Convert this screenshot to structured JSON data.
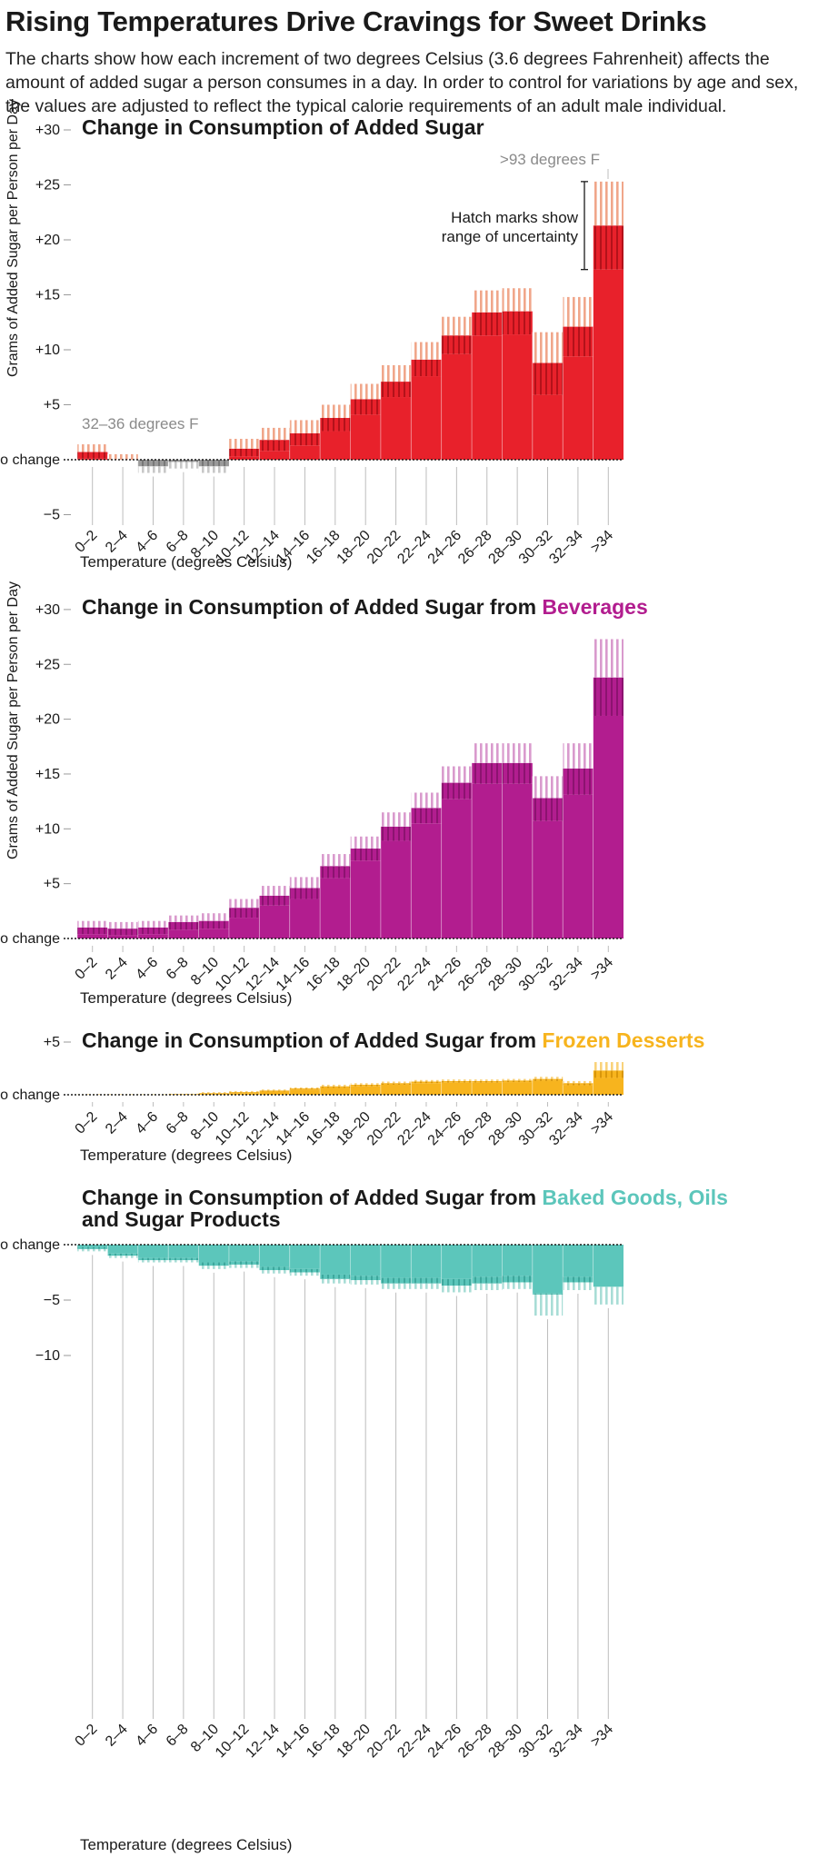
{
  "page": {
    "title": "Rising Temperatures Drive Cravings for Sweet Drinks",
    "subtitle": "The charts show how each increment of two degrees Celsius (3.6 degrees Fahrenheit) affects the amount of added sugar a person consumes in a day. In order to control for variations by age and sex, the values are adjusted to reflect the typical calorie requirements of an adult male individual."
  },
  "chart_data": [
    {
      "type": "bar",
      "title": "Change in Consumption of Added Sugar",
      "title_highlight": "",
      "ylabel": "Grams of Added Sugar per Person per Day",
      "xlabel": "Temperature (degrees Celsius)",
      "ylim": [
        -5,
        30
      ],
      "yticks": [
        "+30",
        "+25",
        "+20",
        "+15",
        "+10",
        "+5",
        "No change",
        "−5"
      ],
      "categories": [
        "0–2",
        "2–4",
        "4–6",
        "6–8",
        "8–10",
        "10–12",
        "12–14",
        "14–16",
        "16–18",
        "18–20",
        "20–22",
        "22–24",
        "24–26",
        "26–28",
        "28–30",
        "30–32",
        "32–34",
        ">34"
      ],
      "values": [
        0.7,
        0.0,
        -0.6,
        -0.2,
        -0.6,
        1.0,
        1.8,
        2.4,
        3.8,
        5.5,
        7.1,
        9.1,
        11.3,
        13.4,
        13.5,
        8.8,
        12.1,
        21.3
      ],
      "low": [
        0.1,
        -0.8,
        -1.2,
        -0.8,
        -1.2,
        0.3,
        0.8,
        1.3,
        2.6,
        4.1,
        5.7,
        7.6,
        9.6,
        11.3,
        11.4,
        5.9,
        9.4,
        17.3
      ],
      "high": [
        1.4,
        0.5,
        0.1,
        0.6,
        0.2,
        1.9,
        2.9,
        3.6,
        5.0,
        6.9,
        8.6,
        10.7,
        13.0,
        15.4,
        15.6,
        11.6,
        14.8,
        25.3
      ],
      "annotations": [
        "32–36 degrees F",
        ">93 degrees F",
        "Hatch marks show",
        "range of uncertainty"
      ]
    },
    {
      "type": "bar",
      "title": "Change in Consumption of Added Sugar from ",
      "title_highlight": "Beverages",
      "ylabel": "Grams of Added Sugar per Person per Day",
      "xlabel": "Temperature (degrees Celsius)",
      "ylim": [
        0,
        30
      ],
      "yticks": [
        "+30",
        "+25",
        "+20",
        "+15",
        "+10",
        "+5",
        "No change"
      ],
      "categories": [
        "0–2",
        "2–4",
        "4–6",
        "6–8",
        "8–10",
        "10–12",
        "12–14",
        "14–16",
        "16–18",
        "18–20",
        "20–22",
        "22–24",
        "24–26",
        "26–28",
        "28–30",
        "30–32",
        "32–34",
        ">34"
      ],
      "values": [
        1.0,
        0.9,
        1.0,
        1.5,
        1.6,
        2.8,
        3.9,
        4.6,
        6.6,
        8.2,
        10.2,
        11.9,
        14.2,
        16.0,
        16.0,
        12.8,
        15.5,
        23.8
      ],
      "low": [
        0.4,
        0.3,
        0.4,
        0.8,
        0.9,
        1.9,
        3.0,
        3.6,
        5.5,
        7.1,
        8.9,
        10.5,
        12.7,
        14.1,
        14.1,
        10.7,
        13.1,
        20.3
      ],
      "high": [
        1.6,
        1.5,
        1.6,
        2.1,
        2.3,
        3.6,
        4.8,
        5.6,
        7.7,
        9.3,
        11.5,
        13.3,
        15.7,
        17.8,
        17.8,
        14.8,
        17.8,
        27.3
      ],
      "annotations": []
    },
    {
      "type": "bar",
      "title": "Change in Consumption of Added Sugar from ",
      "title_highlight": "Frozen Desserts",
      "ylabel": "",
      "xlabel": "Temperature (degrees Celsius)",
      "ylim": [
        0,
        5
      ],
      "yticks": [
        "+5",
        "No change"
      ],
      "categories": [
        "0–2",
        "2–4",
        "4–6",
        "6–8",
        "8–10",
        "10–12",
        "12–14",
        "14–16",
        "16–18",
        "18–20",
        "20–22",
        "22–24",
        "24–26",
        "26–28",
        "28–30",
        "30–32",
        "32–34",
        ">34"
      ],
      "values": [
        0.0,
        0.0,
        0.0,
        0.05,
        0.15,
        0.25,
        0.4,
        0.6,
        0.8,
        0.95,
        1.1,
        1.25,
        1.3,
        1.3,
        1.35,
        1.5,
        1.1,
        2.3
      ],
      "low": [
        0.0,
        0.0,
        0.0,
        0.0,
        0.05,
        0.15,
        0.3,
        0.5,
        0.65,
        0.8,
        0.95,
        1.1,
        1.15,
        1.15,
        1.2,
        1.3,
        0.9,
        1.6
      ],
      "high": [
        0.05,
        0.05,
        0.05,
        0.1,
        0.25,
        0.35,
        0.5,
        0.7,
        0.95,
        1.1,
        1.25,
        1.4,
        1.45,
        1.45,
        1.5,
        1.7,
        1.3,
        3.1
      ],
      "annotations": []
    },
    {
      "type": "bar",
      "title": "Change in Consumption of Added Sugar from ",
      "title_highlight": "Baked Goods, Oils and Sugar Products",
      "ylabel": "",
      "xlabel": "Temperature (degrees Celsius)",
      "ylim": [
        -10,
        0
      ],
      "yticks": [
        "No change",
        "−5",
        "−10"
      ],
      "categories": [
        "0–2",
        "2–4",
        "4–6",
        "6–8",
        "8–10",
        "10–12",
        "12–14",
        "14–16",
        "16–18",
        "18–20",
        "20–22",
        "22–24",
        "24–26",
        "26–28",
        "28–30",
        "30–32",
        "32–34",
        ">34"
      ],
      "values": [
        -0.4,
        -1.0,
        -1.4,
        -1.4,
        -1.9,
        -1.8,
        -2.3,
        -2.5,
        -3.1,
        -3.2,
        -3.5,
        -3.5,
        -3.7,
        -3.5,
        -3.4,
        -4.5,
        -3.4,
        -3.8
      ],
      "low": [
        -0.6,
        -1.2,
        -1.6,
        -1.6,
        -2.2,
        -2.1,
        -2.6,
        -2.8,
        -3.5,
        -3.6,
        -4.0,
        -4.0,
        -4.3,
        -4.1,
        -4.0,
        -6.4,
        -4.1,
        -5.4
      ],
      "high": [
        -0.2,
        -0.8,
        -1.2,
        -1.2,
        -1.6,
        -1.5,
        -2.0,
        -2.2,
        -2.7,
        -2.8,
        -3.0,
        -3.0,
        -3.1,
        -2.9,
        -2.8,
        -4.4,
        -2.9,
        -3.8
      ],
      "annotations": []
    }
  ],
  "colors": {
    "total": "#e8212b",
    "total_hatch": "#f0a68a",
    "negative": "#9a9a9a",
    "negative_hatch": "#c8c8c8",
    "beverages": "#b21d8f",
    "beverages_hatch": "#d99acd",
    "frozen": "#f7b41e",
    "frozen_hatch": "#f9d27a",
    "baked": "#5cc6bb",
    "baked_hatch": "#a8ddd6",
    "grey_text": "#8a8a8a"
  }
}
